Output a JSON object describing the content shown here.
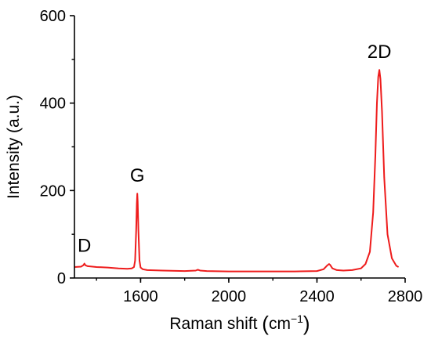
{
  "chart_data": {
    "type": "line",
    "title": "",
    "xlabel": "Raman shift",
    "xlabel_unit_base": "cm",
    "xlabel_unit_exp": "−1",
    "ylabel": "Intensity (a.u.)",
    "xlim": [
      1300,
      2800
    ],
    "ylim": [
      0,
      600
    ],
    "x_ticks": [
      1600,
      2000,
      2400,
      2800
    ],
    "y_ticks": [
      0,
      200,
      400,
      600
    ],
    "grid": false,
    "legend": "none",
    "colors": {
      "line": "#ee1c1c",
      "axes": "#000000"
    },
    "peak_labels": [
      {
        "label": "D",
        "x": 1345,
        "y": 33
      },
      {
        "label": "G",
        "x": 1585,
        "y": 193
      },
      {
        "label": "2D",
        "x": 2683,
        "y": 476
      }
    ],
    "series": [
      {
        "x": [
          1300,
          1330,
          1340,
          1345,
          1350,
          1360,
          1400,
          1450,
          1500,
          1540,
          1560,
          1570,
          1575,
          1580,
          1583,
          1585,
          1587,
          1590,
          1595,
          1600,
          1610,
          1630,
          1700,
          1800,
          1850,
          1860,
          1870,
          1900,
          2000,
          2100,
          2200,
          2300,
          2400,
          2430,
          2445,
          2455,
          2460,
          2470,
          2490,
          2520,
          2560,
          2600,
          2620,
          2640,
          2655,
          2665,
          2672,
          2678,
          2683,
          2688,
          2695,
          2705,
          2720,
          2740,
          2760,
          2770
        ],
        "y": [
          25,
          26,
          29,
          33,
          29,
          27,
          25,
          24,
          22,
          21,
          22,
          25,
          40,
          110,
          170,
          193,
          175,
          110,
          40,
          24,
          20,
          18,
          17,
          16,
          17,
          19,
          17,
          16,
          15,
          15,
          15,
          15,
          16,
          20,
          28,
          32,
          30,
          22,
          18,
          17,
          18,
          22,
          32,
          60,
          150,
          280,
          400,
          460,
          476,
          455,
          380,
          230,
          100,
          45,
          28,
          25
        ]
      }
    ]
  }
}
